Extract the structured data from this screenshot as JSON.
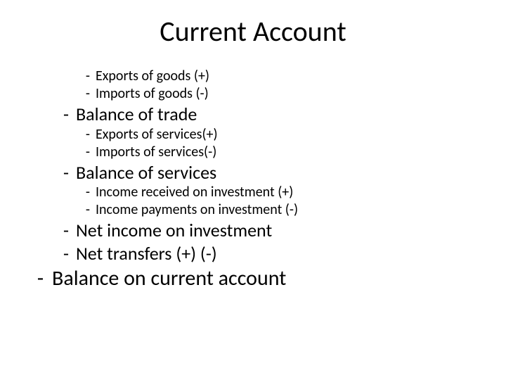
{
  "title": "Current Account",
  "bullet_char": "-",
  "colors": {
    "background": "#ffffff",
    "text": "#000000"
  },
  "font_sizes_pt": {
    "title": 40,
    "l1": 30,
    "l2": 26,
    "l3": 20
  },
  "items": [
    {
      "level": 3,
      "text": "Exports of goods (+)"
    },
    {
      "level": 3,
      "text": "Imports of goods (-)"
    },
    {
      "level": 2,
      "text": "Balance of trade"
    },
    {
      "level": 3,
      "text": "Exports of services(+)"
    },
    {
      "level": 3,
      "text": "Imports of services(-)"
    },
    {
      "level": 2,
      "text": "Balance of services"
    },
    {
      "level": 3,
      "text": "Income received on investment (+)"
    },
    {
      "level": 3,
      "text": "Income payments on investment (-)"
    },
    {
      "level": 2,
      "text": "Net income on investment"
    },
    {
      "level": 2,
      "text": "Net transfers (+) (-)"
    },
    {
      "level": 1,
      "text": "Balance on current account"
    }
  ]
}
